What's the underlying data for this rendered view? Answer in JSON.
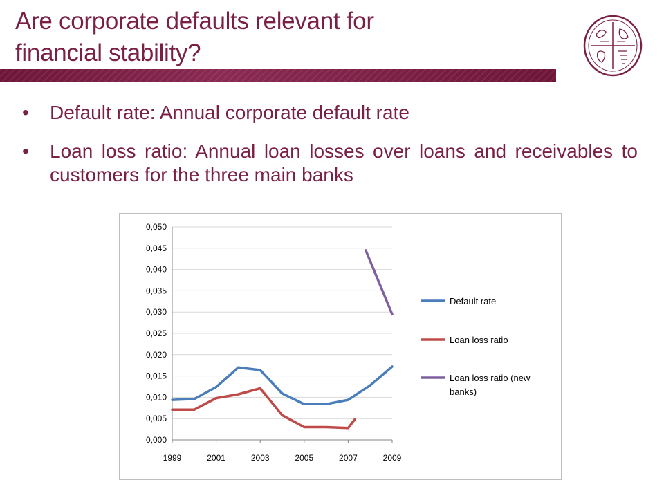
{
  "slide": {
    "title_line1": "Are corporate defaults relevant for",
    "title_line2": "financial stability?",
    "bullets": [
      "Default rate: Annual corporate default rate",
      "Loan loss ratio: Annual loan losses over loans and receivables to customers for the three main banks"
    ],
    "bullet_glyph": "•",
    "accent_color": "#7a1f45",
    "logo_icon": "bank-seal-icon"
  },
  "chart_data": {
    "type": "line",
    "title": "",
    "xlabel": "",
    "ylabel": "",
    "x": [
      1999,
      2000,
      2001,
      2002,
      2003,
      2004,
      2005,
      2006,
      2007,
      2008,
      2009
    ],
    "x_tick_labels": [
      "1999",
      "2001",
      "2003",
      "2005",
      "2007",
      "2009"
    ],
    "x_tick_values": [
      1999,
      2001,
      2003,
      2005,
      2007,
      2009
    ],
    "xlim": [
      1999,
      2009
    ],
    "ylim": [
      0,
      0.05
    ],
    "y_tick_values": [
      0,
      0.005,
      0.01,
      0.015,
      0.02,
      0.025,
      0.03,
      0.035,
      0.04,
      0.045,
      0.05
    ],
    "y_tick_labels": [
      "0,000",
      "0,005",
      "0,010",
      "0,015",
      "0,020",
      "0,025",
      "0,030",
      "0,035",
      "0,040",
      "0,045",
      "0,050"
    ],
    "grid": "horizontal",
    "legend_position": "right",
    "series": [
      {
        "name": "Default rate",
        "color": "#4a7ebb",
        "points": [
          [
            1999,
            0.0094
          ],
          [
            2000,
            0.0096
          ],
          [
            2001,
            0.0124
          ],
          [
            2002,
            0.017
          ],
          [
            2003,
            0.0164
          ],
          [
            2004,
            0.0109
          ],
          [
            2005,
            0.0084
          ],
          [
            2006,
            0.0084
          ],
          [
            2007,
            0.0094
          ],
          [
            2008,
            0.0128
          ],
          [
            2009,
            0.0172
          ]
        ]
      },
      {
        "name": "Loan loss ratio",
        "color": "#be4b48",
        "points": [
          [
            1999,
            0.0071
          ],
          [
            2000,
            0.0071
          ],
          [
            2001,
            0.0098
          ],
          [
            2002,
            0.0107
          ],
          [
            2003,
            0.0121
          ],
          [
            2004,
            0.0058
          ],
          [
            2005,
            0.003
          ],
          [
            2006,
            0.003
          ],
          [
            2007,
            0.0028
          ],
          [
            2007.3,
            0.0048
          ]
        ]
      },
      {
        "name": "Loan loss ratio (new banks)",
        "name_lines": [
          "Loan loss ratio (new",
          "banks)"
        ],
        "color": "#7d60a0",
        "points": [
          [
            2007.8,
            0.0445
          ],
          [
            2009,
            0.0295
          ]
        ]
      }
    ]
  }
}
